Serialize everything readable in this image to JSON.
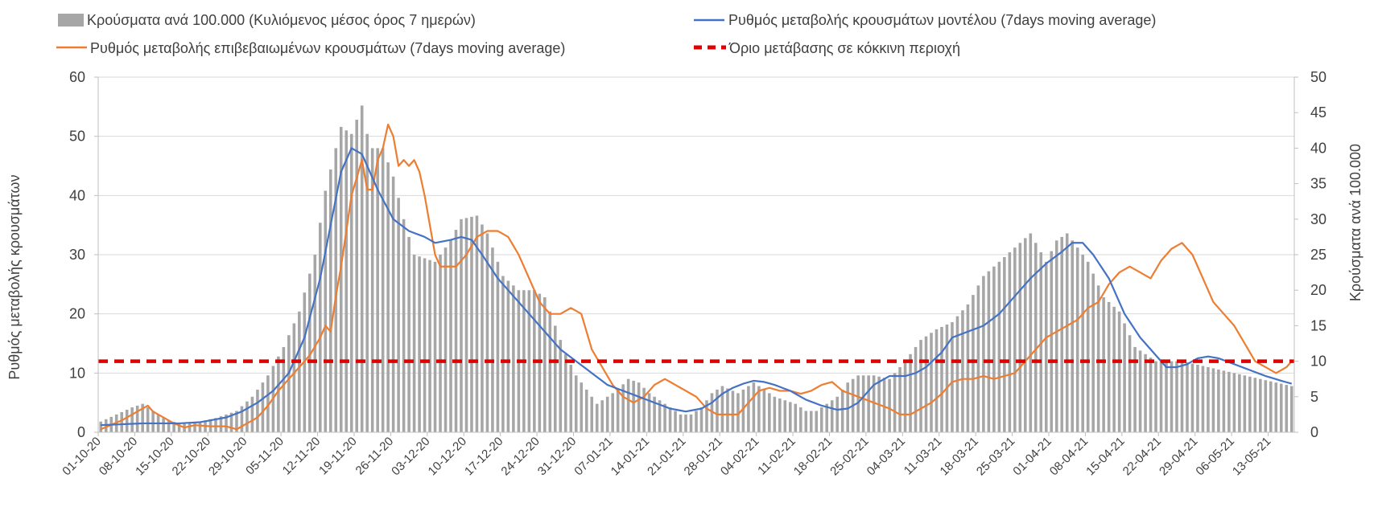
{
  "chart_data": {
    "type": "bar+line",
    "title": "",
    "legend_position": "top",
    "legend": [
      {
        "key": "bars",
        "label": "Κρούσματα ανά 100.000 (Κυλιόμενος μέσος όρος 7 ημερών)",
        "color": "#a6a6a6"
      },
      {
        "key": "model",
        "label": "Ρυθμός μεταβολής κρουσμάτων μοντέλου (7days moving average)",
        "color": "#4472c4"
      },
      {
        "key": "confirmed",
        "label": "Ρυθμός μεταβολής επιβεβαιωμένων κρουσμάτων (7days moving average)",
        "color": "#ed7d31"
      },
      {
        "key": "threshold",
        "label": "Όριο μετάβασης σε κόκκινη περιοχή",
        "color": "#e00000"
      }
    ],
    "ylabel_left": "Ρυθμός μεταβολής κρουσμάτων",
    "ylabel_right": "Κρούσματα ανά 100.000",
    "y_left": {
      "min": 0,
      "max": 60,
      "ticks": [
        0,
        10,
        20,
        30,
        40,
        50,
        60
      ]
    },
    "y_right": {
      "min": 0,
      "max": 50,
      "ticks": [
        0,
        5,
        10,
        15,
        20,
        25,
        30,
        35,
        40,
        45,
        50
      ]
    },
    "x_start": "01-10-20",
    "x_end": "17-05-21",
    "num_days": 229,
    "x_tick_step_days": 7,
    "x_tick_labels": [
      "01-10-20",
      "08-10-20",
      "15-10-20",
      "22-10-20",
      "29-10-20",
      "05-11-20",
      "12-11-20",
      "19-11-20",
      "26-11-20",
      "03-12-20",
      "10-12-20",
      "17-12-20",
      "24-12-20",
      "31-12-20",
      "07-01-21",
      "14-01-21",
      "21-01-21",
      "28-01-21",
      "04-02-21",
      "11-02-21",
      "18-02-21",
      "25-02-21",
      "04-03-21",
      "11-03-21",
      "18-03-21",
      "25-03-21",
      "01-04-21",
      "08-04-21",
      "15-04-21",
      "22-04-21",
      "29-04-21",
      "06-05-21",
      "13-05-21"
    ],
    "bars_keypoints_right_axis": [
      [
        0,
        1.5
      ],
      [
        3,
        2.5
      ],
      [
        6,
        3.5
      ],
      [
        8,
        4
      ],
      [
        10,
        3
      ],
      [
        12,
        2
      ],
      [
        15,
        1.2
      ],
      [
        19,
        1.5
      ],
      [
        22,
        2
      ],
      [
        26,
        3
      ],
      [
        29,
        5
      ],
      [
        32,
        8
      ],
      [
        35,
        12
      ],
      [
        38,
        17
      ],
      [
        41,
        25
      ],
      [
        43,
        34
      ],
      [
        45,
        40
      ],
      [
        46,
        43
      ],
      [
        48,
        42
      ],
      [
        49,
        44
      ],
      [
        50,
        46
      ],
      [
        51,
        42
      ],
      [
        52,
        40
      ],
      [
        54,
        40
      ],
      [
        56,
        36
      ],
      [
        58,
        30
      ],
      [
        60,
        25
      ],
      [
        62,
        24.5
      ],
      [
        64,
        24
      ],
      [
        67,
        27
      ],
      [
        69,
        30
      ],
      [
        72,
        30.5
      ],
      [
        74,
        28
      ],
      [
        77,
        22
      ],
      [
        80,
        20
      ],
      [
        83,
        20
      ],
      [
        85,
        19
      ],
      [
        87,
        15
      ],
      [
        89,
        11
      ],
      [
        91,
        8
      ],
      [
        93,
        6
      ],
      [
        95,
        4
      ],
      [
        97,
        5
      ],
      [
        99,
        6
      ],
      [
        101,
        7.5
      ],
      [
        103,
        7
      ],
      [
        105,
        5.5
      ],
      [
        107,
        4.5
      ],
      [
        109,
        3.5
      ],
      [
        111,
        2.5
      ],
      [
        113,
        2.5
      ],
      [
        115,
        3.5
      ],
      [
        117,
        5.5
      ],
      [
        119,
        6.5
      ],
      [
        122,
        5.5
      ],
      [
        125,
        7
      ],
      [
        127,
        6
      ],
      [
        129,
        5
      ],
      [
        131,
        4.5
      ],
      [
        133,
        4
      ],
      [
        135,
        3
      ],
      [
        137,
        3
      ],
      [
        139,
        4
      ],
      [
        141,
        5
      ],
      [
        143,
        7
      ],
      [
        145,
        8
      ],
      [
        148,
        8
      ],
      [
        151,
        7.5
      ],
      [
        154,
        10
      ],
      [
        157,
        13
      ],
      [
        160,
        14.5
      ],
      [
        163,
        15.5
      ],
      [
        166,
        18
      ],
      [
        169,
        22
      ],
      [
        172,
        24
      ],
      [
        175,
        26
      ],
      [
        178,
        28
      ],
      [
        181,
        24
      ],
      [
        183,
        27
      ],
      [
        185,
        28
      ],
      [
        187,
        26
      ],
      [
        189,
        24
      ],
      [
        192,
        19
      ],
      [
        195,
        17
      ],
      [
        198,
        12
      ],
      [
        200,
        11
      ],
      [
        202,
        10
      ],
      [
        204,
        10
      ],
      [
        207,
        10
      ],
      [
        210,
        9.5
      ],
      [
        213,
        9
      ],
      [
        216,
        8.5
      ],
      [
        219,
        8
      ],
      [
        222,
        7.5
      ],
      [
        225,
        7
      ],
      [
        228,
        6.5
      ]
    ],
    "model_keypoints_left_axis": [
      [
        0,
        1.2
      ],
      [
        8,
        1.5
      ],
      [
        15,
        1.5
      ],
      [
        19,
        1.7
      ],
      [
        24,
        2.5
      ],
      [
        27,
        3.5
      ],
      [
        30,
        5
      ],
      [
        33,
        7
      ],
      [
        36,
        10
      ],
      [
        39,
        16
      ],
      [
        42,
        26
      ],
      [
        44,
        35
      ],
      [
        46,
        44
      ],
      [
        48,
        48
      ],
      [
        50,
        47
      ],
      [
        53,
        41
      ],
      [
        56,
        36
      ],
      [
        59,
        34
      ],
      [
        62,
        33
      ],
      [
        64,
        32
      ],
      [
        67,
        32.5
      ],
      [
        69,
        33
      ],
      [
        71,
        32.5
      ],
      [
        73,
        30
      ],
      [
        76,
        26
      ],
      [
        79,
        23
      ],
      [
        82,
        20
      ],
      [
        85,
        17
      ],
      [
        88,
        14
      ],
      [
        91,
        12
      ],
      [
        94,
        10
      ],
      [
        97,
        8
      ],
      [
        100,
        7
      ],
      [
        103,
        6
      ],
      [
        106,
        5
      ],
      [
        109,
        4
      ],
      [
        112,
        3.5
      ],
      [
        115,
        4
      ],
      [
        117,
        5
      ],
      [
        119,
        6.5
      ],
      [
        121,
        7.5
      ],
      [
        123,
        8.2
      ],
      [
        125,
        8.7
      ],
      [
        127,
        8.5
      ],
      [
        129,
        8
      ],
      [
        132,
        7
      ],
      [
        135,
        5.5
      ],
      [
        138,
        4.5
      ],
      [
        141,
        3.8
      ],
      [
        143,
        4
      ],
      [
        145,
        5
      ],
      [
        148,
        8
      ],
      [
        151,
        9.5
      ],
      [
        154,
        9.5
      ],
      [
        156,
        10
      ],
      [
        158,
        11
      ],
      [
        161,
        13.5
      ],
      [
        163,
        16
      ],
      [
        166,
        17
      ],
      [
        169,
        18
      ],
      [
        172,
        20
      ],
      [
        175,
        23
      ],
      [
        178,
        26
      ],
      [
        181,
        28.5
      ],
      [
        184,
        30.5
      ],
      [
        186,
        32
      ],
      [
        188,
        32
      ],
      [
        190,
        30
      ],
      [
        193,
        26
      ],
      [
        196,
        20
      ],
      [
        199,
        16
      ],
      [
        202,
        13
      ],
      [
        204,
        11
      ],
      [
        206,
        11
      ],
      [
        208,
        11.5
      ],
      [
        210,
        12.5
      ],
      [
        212,
        12.8
      ],
      [
        214,
        12.5
      ],
      [
        217,
        11.5
      ],
      [
        220,
        10.5
      ],
      [
        223,
        9.5
      ],
      [
        226,
        8.7
      ],
      [
        228,
        8.2
      ]
    ],
    "confirmed_keypoints_left_axis": [
      [
        0,
        0.5
      ],
      [
        4,
        2
      ],
      [
        6,
        3
      ],
      [
        8,
        4
      ],
      [
        9,
        4.5
      ],
      [
        10,
        3.5
      ],
      [
        12,
        2.5
      ],
      [
        14,
        1.5
      ],
      [
        16,
        0.8
      ],
      [
        18,
        1.2
      ],
      [
        21,
        1
      ],
      [
        24,
        1
      ],
      [
        26,
        0.5
      ],
      [
        28,
        1.5
      ],
      [
        30,
        2.5
      ],
      [
        32,
        4.5
      ],
      [
        34,
        7
      ],
      [
        36,
        9
      ],
      [
        38,
        11
      ],
      [
        40,
        13
      ],
      [
        42,
        16
      ],
      [
        43,
        18
      ],
      [
        44,
        17
      ],
      [
        45,
        23
      ],
      [
        46,
        28
      ],
      [
        48,
        40
      ],
      [
        49,
        43
      ],
      [
        50,
        46
      ],
      [
        51,
        41
      ],
      [
        52,
        41
      ],
      [
        53,
        46
      ],
      [
        54,
        48
      ],
      [
        55,
        52
      ],
      [
        56,
        50
      ],
      [
        57,
        45
      ],
      [
        58,
        46
      ],
      [
        59,
        45
      ],
      [
        60,
        46
      ],
      [
        61,
        44
      ],
      [
        62,
        40
      ],
      [
        63,
        35
      ],
      [
        64,
        30
      ],
      [
        65,
        28
      ],
      [
        66,
        28
      ],
      [
        68,
        28
      ],
      [
        70,
        30
      ],
      [
        72,
        33
      ],
      [
        74,
        34
      ],
      [
        76,
        34
      ],
      [
        78,
        33
      ],
      [
        80,
        30
      ],
      [
        82,
        26
      ],
      [
        84,
        22
      ],
      [
        86,
        20
      ],
      [
        88,
        20
      ],
      [
        90,
        21
      ],
      [
        92,
        20
      ],
      [
        94,
        14
      ],
      [
        96,
        11
      ],
      [
        98,
        8
      ],
      [
        100,
        6
      ],
      [
        102,
        5
      ],
      [
        104,
        6
      ],
      [
        106,
        8
      ],
      [
        108,
        9
      ],
      [
        110,
        8
      ],
      [
        112,
        7
      ],
      [
        114,
        6
      ],
      [
        116,
        4
      ],
      [
        118,
        3
      ],
      [
        120,
        3
      ],
      [
        122,
        3
      ],
      [
        124,
        5
      ],
      [
        126,
        7
      ],
      [
        128,
        7.5
      ],
      [
        130,
        7
      ],
      [
        132,
        7
      ],
      [
        134,
        6.5
      ],
      [
        136,
        7
      ],
      [
        138,
        8
      ],
      [
        140,
        8.5
      ],
      [
        142,
        7
      ],
      [
        145,
        6
      ],
      [
        148,
        5
      ],
      [
        151,
        4
      ],
      [
        153,
        3
      ],
      [
        155,
        3
      ],
      [
        157,
        4
      ],
      [
        159,
        5
      ],
      [
        161,
        6.5
      ],
      [
        163,
        8.5
      ],
      [
        165,
        9
      ],
      [
        167,
        9
      ],
      [
        169,
        9.5
      ],
      [
        171,
        9
      ],
      [
        173,
        9.5
      ],
      [
        175,
        10
      ],
      [
        177,
        12
      ],
      [
        179,
        14
      ],
      [
        181,
        16
      ],
      [
        183,
        17
      ],
      [
        185,
        18
      ],
      [
        187,
        19
      ],
      [
        189,
        21
      ],
      [
        191,
        22
      ],
      [
        193,
        25
      ],
      [
        195,
        27
      ],
      [
        197,
        28
      ],
      [
        199,
        27
      ],
      [
        201,
        26
      ],
      [
        203,
        29
      ],
      [
        205,
        31
      ],
      [
        207,
        32
      ],
      [
        209,
        30
      ],
      [
        211,
        26
      ],
      [
        213,
        22
      ],
      [
        215,
        20
      ],
      [
        217,
        18
      ],
      [
        219,
        15
      ],
      [
        221,
        12
      ],
      [
        223,
        11
      ],
      [
        225,
        10
      ],
      [
        227,
        11
      ],
      [
        228,
        12
      ]
    ],
    "threshold_left_axis": 12
  }
}
